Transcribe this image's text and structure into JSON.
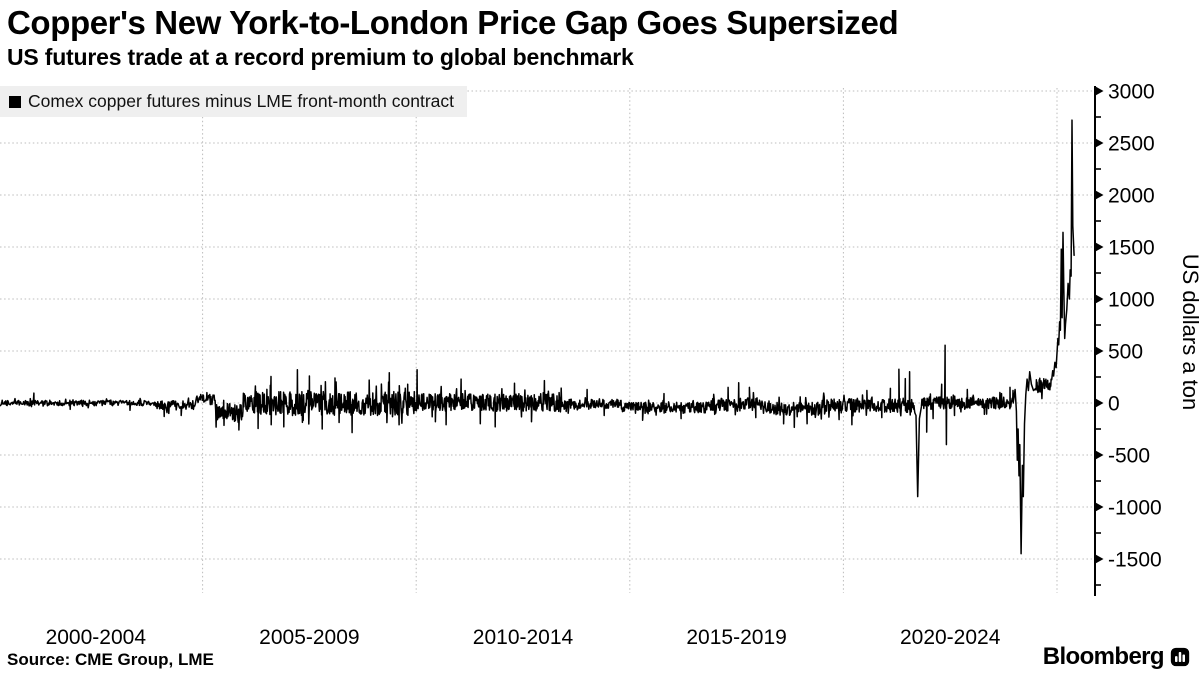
{
  "header": {
    "title": "Copper's New York-to-London Price Gap Goes Supersized",
    "subtitle": "US futures trade at a record premium to global benchmark"
  },
  "footer": {
    "source": "Source: CME Group, LME",
    "brand": "Bloomberg"
  },
  "colors": {
    "background": "#ffffff",
    "line": "#000000",
    "gridline": "#bcbcbc",
    "legend_bg": "#efefef",
    "text": "#000000"
  },
  "chart_data": {
    "type": "line",
    "title": "Copper's New York-to-London Price Gap Goes Supersized",
    "subtitle": "US futures trade at a record premium to global benchmark",
    "source": "Source: CME Group, LME",
    "ylabel": "US dollars a ton",
    "legend_position": "top-left",
    "grid": true,
    "x_tick_labels": [
      "2000-2004",
      "2005-2009",
      "2010-2014",
      "2015-2019",
      "2020-2024"
    ],
    "x_gridline_years": [
      2005,
      2010,
      2015,
      2020,
      2025
    ],
    "xlim": [
      2000.26,
      2025.9
    ],
    "ylim": [
      -1900,
      3100
    ],
    "y_ticks_major": [
      3000,
      2500,
      2000,
      1500,
      1000,
      500,
      0,
      -500,
      -1000,
      -1500
    ],
    "y_ticks_minor": [
      2750,
      2250,
      1750,
      1250,
      750,
      250,
      -250,
      -750,
      -1250,
      -1750
    ],
    "series": [
      {
        "name": "Comex copper futures minus LME front-month contract",
        "color": "#000000",
        "unit": "US dollars a ton",
        "noise_seed": 20250708,
        "noise_segments": [
          [
            2000.26,
            2003.9,
            0,
            26,
            70
          ],
          [
            2003.9,
            2004.85,
            -18,
            45,
            70
          ],
          [
            2004.85,
            2005.3,
            45,
            40,
            80
          ],
          [
            2005.3,
            2005.95,
            -90,
            85,
            90
          ],
          [
            2005.95,
            2010.0,
            -5,
            115,
            100
          ],
          [
            2010.0,
            2013.4,
            5,
            85,
            100
          ],
          [
            2013.4,
            2014.8,
            -10,
            50,
            85
          ],
          [
            2014.8,
            2016.9,
            -45,
            55,
            85
          ],
          [
            2016.9,
            2018.1,
            -15,
            65,
            85
          ],
          [
            2018.1,
            2019.5,
            -55,
            65,
            85
          ],
          [
            2019.5,
            2021.25,
            -25,
            65,
            90
          ],
          [
            2021.25,
            2021.68,
            -20,
            70,
            90
          ],
          [
            2021.82,
            2023.98,
            0,
            60,
            90
          ],
          [
            2024.5,
            2024.88,
            170,
            70,
            140
          ]
        ],
        "key_points": [
          [
            2001.05,
            95
          ],
          [
            2001.9,
            -62
          ],
          [
            2003.3,
            -70
          ],
          [
            2004.1,
            -130
          ],
          [
            2004.5,
            -120
          ],
          [
            2005.1,
            100
          ],
          [
            2005.5,
            -215
          ],
          [
            2005.85,
            -260
          ],
          [
            2006.3,
            -245
          ],
          [
            2006.6,
            255
          ],
          [
            2006.9,
            -230
          ],
          [
            2007.22,
            320
          ],
          [
            2007.5,
            260
          ],
          [
            2007.8,
            -250
          ],
          [
            2008.1,
            240
          ],
          [
            2008.5,
            -285
          ],
          [
            2008.9,
            220
          ],
          [
            2009.37,
            290
          ],
          [
            2009.6,
            -210
          ],
          [
            2009.8,
            180
          ],
          [
            2010.02,
            320
          ],
          [
            2010.45,
            -180
          ],
          [
            2010.7,
            -210
          ],
          [
            2011.05,
            230
          ],
          [
            2011.5,
            -200
          ],
          [
            2011.85,
            -230
          ],
          [
            2012.3,
            190
          ],
          [
            2012.7,
            -180
          ],
          [
            2013.0,
            215
          ],
          [
            2014.0,
            130
          ],
          [
            2014.4,
            -120
          ],
          [
            2015.3,
            -165
          ],
          [
            2015.8,
            90
          ],
          [
            2016.2,
            -150
          ],
          [
            2017.3,
            150
          ],
          [
            2017.55,
            195
          ],
          [
            2017.8,
            150
          ],
          [
            2017.95,
            -140
          ],
          [
            2018.6,
            -200
          ],
          [
            2018.85,
            -235
          ],
          [
            2019.15,
            -200
          ],
          [
            2019.9,
            -160
          ],
          [
            2020.2,
            -210
          ],
          [
            2020.55,
            120
          ],
          [
            2020.9,
            -140
          ],
          [
            2021.1,
            140
          ],
          [
            2021.3,
            325
          ],
          [
            2021.45,
            235
          ],
          [
            2021.55,
            300
          ],
          [
            2021.7,
            -120
          ],
          [
            2021.74,
            -900
          ],
          [
            2021.78,
            -150
          ],
          [
            2021.95,
            -280
          ],
          [
            2022.1,
            -150
          ],
          [
            2022.3,
            180
          ],
          [
            2022.38,
            555
          ],
          [
            2022.41,
            -400
          ],
          [
            2022.6,
            -120
          ],
          [
            2022.9,
            130
          ],
          [
            2023.3,
            -110
          ],
          [
            2023.7,
            90
          ],
          [
            2023.9,
            150
          ],
          [
            2023.97,
            120
          ],
          [
            2024.02,
            130
          ],
          [
            2024.05,
            -80
          ],
          [
            2024.07,
            -550
          ],
          [
            2024.09,
            -250
          ],
          [
            2024.11,
            -700
          ],
          [
            2024.13,
            -400
          ],
          [
            2024.16,
            -1450
          ],
          [
            2024.19,
            -600
          ],
          [
            2024.21,
            -900
          ],
          [
            2024.24,
            -200
          ],
          [
            2024.27,
            80
          ],
          [
            2024.3,
            230
          ],
          [
            2024.33,
            120
          ],
          [
            2024.36,
            300
          ],
          [
            2024.4,
            180
          ],
          [
            2024.45,
            120
          ],
          [
            2024.9,
            310
          ],
          [
            2024.92,
            260
          ],
          [
            2024.95,
            390
          ],
          [
            2024.98,
            340
          ],
          [
            2025.0,
            480
          ],
          [
            2025.02,
            620
          ],
          [
            2025.04,
            560
          ],
          [
            2025.06,
            780
          ],
          [
            2025.08,
            700
          ],
          [
            2025.1,
            1480
          ],
          [
            2025.12,
            820
          ],
          [
            2025.14,
            1640
          ],
          [
            2025.16,
            1100
          ],
          [
            2025.18,
            620
          ],
          [
            2025.2,
            760
          ],
          [
            2025.23,
            900
          ],
          [
            2025.26,
            1150
          ],
          [
            2025.29,
            1000
          ],
          [
            2025.31,
            1280
          ],
          [
            2025.33,
            1220
          ],
          [
            2025.35,
            2720
          ],
          [
            2025.37,
            1700
          ],
          [
            2025.4,
            1420
          ]
        ]
      }
    ]
  }
}
